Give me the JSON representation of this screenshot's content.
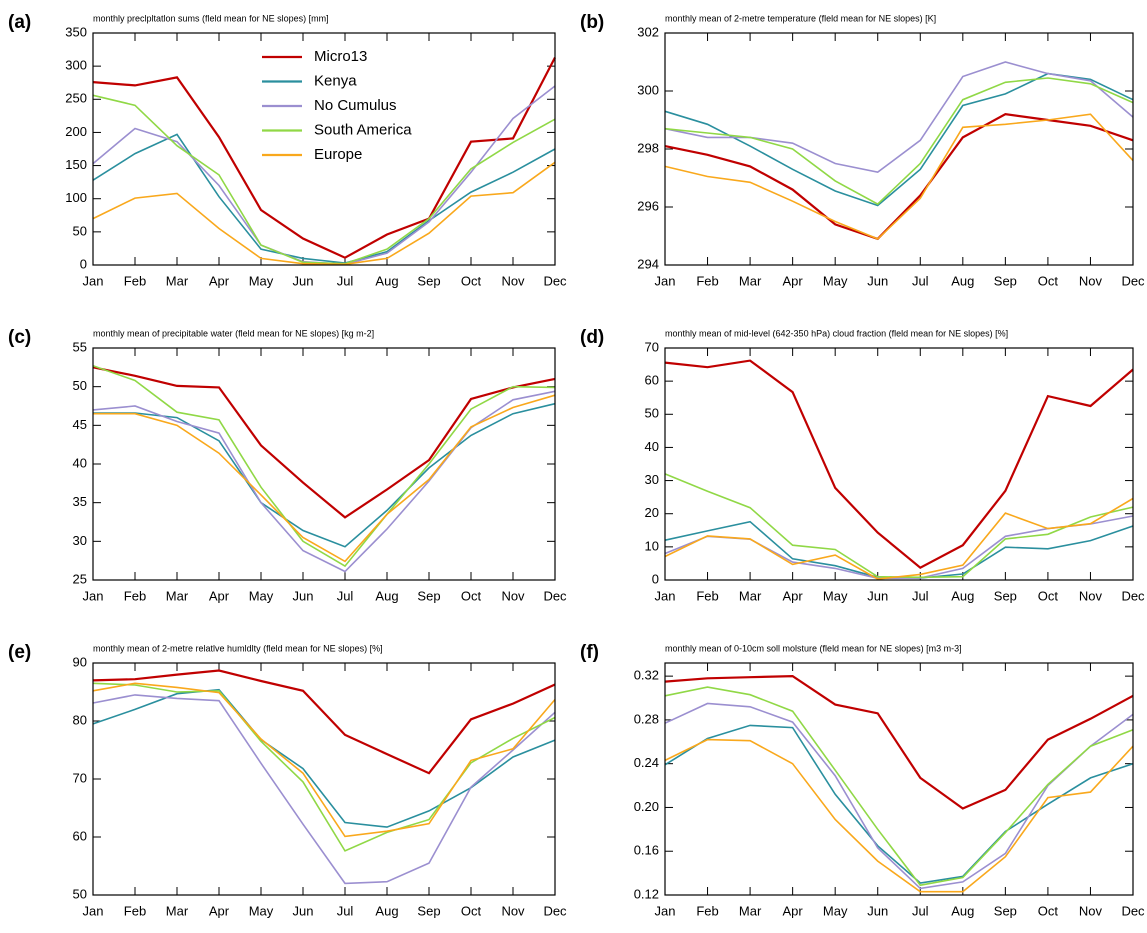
{
  "chart_data": [
    {
      "type": "line",
      "label": "(a)",
      "title": "monthly preclpltatlon sums (fleld mean for NE slopes) [mm]",
      "categories": [
        "Jan",
        "Feb",
        "Mar",
        "Apr",
        "May",
        "Jun",
        "Jul",
        "Aug",
        "Sep",
        "Oct",
        "Nov",
        "Dec"
      ],
      "ylim": [
        0,
        350
      ],
      "yticks": [
        0,
        50,
        100,
        150,
        200,
        250,
        300,
        350
      ],
      "legend": "upper-center",
      "series": [
        {
          "name": "Micro13",
          "color": "#c00000",
          "values": [
            276,
            271,
            283,
            193,
            83,
            40,
            11,
            46,
            70,
            186,
            191,
            313
          ]
        },
        {
          "name": "Kenya",
          "color": "#2a8f9e",
          "values": [
            128,
            168,
            197,
            103,
            24,
            10,
            3,
            20,
            67,
            110,
            140,
            175
          ]
        },
        {
          "name": "No Cumulus",
          "color": "#9b8fd0",
          "values": [
            153,
            206,
            186,
            120,
            30,
            5,
            1,
            18,
            65,
            140,
            221,
            270
          ]
        },
        {
          "name": "South America",
          "color": "#90d846",
          "values": [
            256,
            241,
            180,
            136,
            30,
            4,
            2,
            24,
            70,
            145,
            185,
            220
          ]
        },
        {
          "name": "Europe",
          "color": "#f9a81c",
          "values": [
            70,
            101,
            108,
            55,
            10,
            2,
            1,
            10,
            48,
            104,
            109,
            155
          ]
        }
      ]
    },
    {
      "type": "line",
      "label": "(b)",
      "title": "monthly mean of 2-metre temperature (fleld mean for NE slopes) [K]",
      "categories": [
        "Jan",
        "Feb",
        "Mar",
        "Apr",
        "May",
        "Jun",
        "Jul",
        "Aug",
        "Sep",
        "Oct",
        "Nov",
        "Dec"
      ],
      "ylim": [
        294,
        302
      ],
      "yticks": [
        294,
        296,
        298,
        300,
        302
      ],
      "series": [
        {
          "color": "#c00000",
          "values": [
            298.1,
            297.8,
            297.4,
            296.6,
            295.4,
            294.9,
            296.4,
            298.4,
            299.2,
            299.0,
            298.8,
            298.3
          ]
        },
        {
          "color": "#2a8f9e",
          "values": [
            299.3,
            298.85,
            298.1,
            297.3,
            296.55,
            296.05,
            297.3,
            299.5,
            299.9,
            300.6,
            300.4,
            299.7
          ]
        },
        {
          "color": "#9b8fd0",
          "values": [
            298.7,
            298.4,
            298.4,
            298.2,
            297.5,
            297.2,
            298.3,
            300.5,
            301.0,
            300.6,
            300.35,
            299.1
          ]
        },
        {
          "color": "#90d846",
          "values": [
            298.7,
            298.55,
            298.4,
            298.0,
            296.9,
            296.1,
            297.5,
            299.7,
            300.3,
            300.45,
            300.25,
            299.6
          ]
        },
        {
          "color": "#f9a81c",
          "values": [
            297.4,
            297.05,
            296.85,
            296.2,
            295.5,
            294.9,
            296.3,
            298.75,
            298.85,
            299.0,
            299.2,
            297.6
          ]
        }
      ]
    },
    {
      "type": "line",
      "label": "(c)",
      "title": "monthly mean of precipitable water (fleld mean for NE slopes) [kg m-2]",
      "categories": [
        "Jan",
        "Feb",
        "Mar",
        "Apr",
        "May",
        "Jun",
        "Jul",
        "Aug",
        "Sep",
        "Oct",
        "Nov",
        "Dec"
      ],
      "ylim": [
        25,
        55
      ],
      "yticks": [
        25,
        30,
        35,
        40,
        45,
        50,
        55
      ],
      "series": [
        {
          "color": "#c00000",
          "values": [
            52.5,
            51.4,
            50.1,
            49.9,
            42.4,
            37.6,
            33.1,
            36.7,
            40.5,
            48.4,
            49.9,
            51.0
          ]
        },
        {
          "color": "#2a8f9e",
          "values": [
            46.6,
            46.6,
            46.0,
            43.0,
            35.0,
            31.4,
            29.3,
            34.0,
            39.5,
            43.7,
            46.5,
            47.8
          ]
        },
        {
          "color": "#9b8fd0",
          "values": [
            47.0,
            47.5,
            45.5,
            44.0,
            35.0,
            28.8,
            26.1,
            31.6,
            37.8,
            44.7,
            48.3,
            49.4
          ]
        },
        {
          "color": "#90d846",
          "values": [
            52.7,
            50.8,
            46.7,
            45.7,
            37.0,
            30.0,
            26.8,
            33.5,
            40.0,
            47.1,
            50.0,
            49.9
          ]
        },
        {
          "color": "#f9a81c",
          "values": [
            46.5,
            46.5,
            45.0,
            41.4,
            36.0,
            30.5,
            27.4,
            33.5,
            38.0,
            44.8,
            47.3,
            48.9
          ]
        }
      ]
    },
    {
      "type": "line",
      "label": "(d)",
      "title": "monthly mean of mid-level (642-350 hPa) cloud fraction (fleld mean for NE slopes) [%]",
      "categories": [
        "Jan",
        "Feb",
        "Mar",
        "Apr",
        "May",
        "Jun",
        "Jul",
        "Aug",
        "Sep",
        "Oct",
        "Nov",
        "Dec"
      ],
      "ylim": [
        0,
        70
      ],
      "yticks": [
        0,
        10,
        20,
        30,
        40,
        50,
        60,
        70
      ],
      "series": [
        {
          "color": "#c00000",
          "values": [
            65.6,
            64.2,
            66.2,
            56.7,
            27.8,
            14.3,
            3.7,
            10.5,
            26.9,
            55.5,
            52.5,
            63.5
          ]
        },
        {
          "color": "#2a8f9e",
          "values": [
            12.0,
            14.8,
            17.6,
            6.4,
            4.3,
            0.8,
            0.6,
            1.8,
            9.9,
            9.4,
            11.9,
            16.3
          ]
        },
        {
          "color": "#9b8fd0",
          "values": [
            8.0,
            13.2,
            12.3,
            5.4,
            3.5,
            0.5,
            0.6,
            3.5,
            13.2,
            15.5,
            16.9,
            19.3
          ]
        },
        {
          "color": "#90d846",
          "values": [
            32.0,
            26.8,
            21.8,
            10.5,
            9.2,
            1.0,
            0.8,
            1.0,
            12.4,
            13.8,
            19.0,
            22.0
          ]
        },
        {
          "color": "#f9a81c",
          "values": [
            7.1,
            13.3,
            12.4,
            4.7,
            7.5,
            0.3,
            1.7,
            4.5,
            20.2,
            15.5,
            17.0,
            24.6
          ]
        }
      ]
    },
    {
      "type": "line",
      "label": "(e)",
      "title": "monthly mean of 2-metre relatlve humldlty (fleld mean for NE slopes) [%]",
      "categories": [
        "Jan",
        "Feb",
        "Mar",
        "Apr",
        "May",
        "Jun",
        "Jul",
        "Aug",
        "Sep",
        "Oct",
        "Nov",
        "Dec"
      ],
      "ylim": [
        50,
        90
      ],
      "yticks": [
        50,
        60,
        70,
        80,
        90
      ],
      "series": [
        {
          "color": "#c00000",
          "values": [
            87.0,
            87.2,
            88.0,
            88.7,
            86.9,
            85.2,
            77.6,
            74.3,
            71.0,
            80.3,
            83.0,
            86.3
          ]
        },
        {
          "color": "#2a8f9e",
          "values": [
            79.5,
            82.0,
            84.7,
            85.4,
            76.8,
            71.8,
            62.5,
            61.7,
            64.5,
            68.5,
            73.8,
            76.7
          ]
        },
        {
          "color": "#9b8fd0",
          "values": [
            83.1,
            84.5,
            83.9,
            83.5,
            72.7,
            62.2,
            52.0,
            52.3,
            55.5,
            68.6,
            75.0,
            81.5
          ]
        },
        {
          "color": "#90d846",
          "values": [
            86.5,
            86.2,
            85.0,
            85.2,
            76.5,
            69.5,
            57.6,
            60.8,
            63.0,
            72.8,
            77.0,
            80.6
          ]
        },
        {
          "color": "#f9a81c",
          "values": [
            85.2,
            86.5,
            85.8,
            84.9,
            76.9,
            71.0,
            60.1,
            61.0,
            62.3,
            73.2,
            75.2,
            83.7
          ]
        }
      ]
    },
    {
      "type": "line",
      "label": "(f)",
      "title": "monthly mean of 0-10cm soll molsture (fleld mean for NE slopes) [m3 m-3]",
      "categories": [
        "Jan",
        "Feb",
        "Mar",
        "Apr",
        "May",
        "Jun",
        "Jul",
        "Aug",
        "Sep",
        "Oct",
        "Nov",
        "Dec"
      ],
      "ylim": [
        0.12,
        0.332
      ],
      "yticks": [
        0.12,
        0.16,
        {
          "value": 0.2,
          "label": "0.20"
        },
        0.24,
        0.28,
        0.32
      ],
      "series": [
        {
          "color": "#c00000",
          "values": [
            0.315,
            0.318,
            0.319,
            0.32,
            0.294,
            0.286,
            0.227,
            0.199,
            0.216,
            0.262,
            0.281,
            0.302
          ]
        },
        {
          "color": "#2a8f9e",
          "values": [
            0.239,
            0.263,
            0.275,
            0.273,
            0.212,
            0.165,
            0.131,
            0.137,
            0.178,
            0.203,
            0.227,
            0.24
          ]
        },
        {
          "color": "#9b8fd0",
          "values": [
            0.277,
            0.295,
            0.292,
            0.278,
            0.229,
            0.163,
            0.126,
            0.132,
            0.158,
            0.22,
            0.256,
            0.285
          ]
        },
        {
          "color": "#90d846",
          "values": [
            0.302,
            0.31,
            0.303,
            0.288,
            0.234,
            0.18,
            0.129,
            0.136,
            0.177,
            0.221,
            0.256,
            0.271
          ]
        },
        {
          "color": "#f9a81c",
          "values": [
            0.243,
            0.262,
            0.261,
            0.24,
            0.189,
            0.151,
            0.123,
            0.123,
            0.155,
            0.209,
            0.214,
            0.256
          ]
        }
      ]
    }
  ]
}
